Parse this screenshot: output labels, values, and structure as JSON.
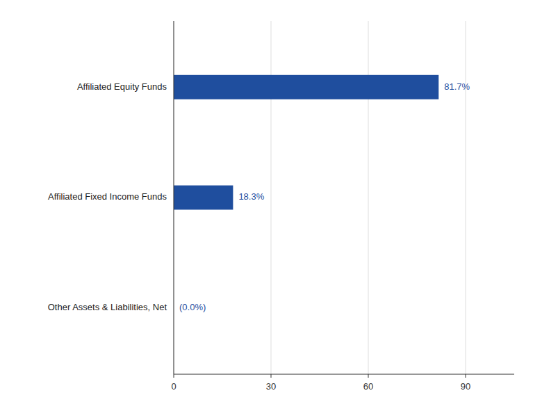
{
  "chart_data": {
    "type": "bar",
    "orientation": "horizontal",
    "categories": [
      "Other Assets & Liabilities, Net",
      "Affiliated Fixed Income Funds",
      "Affiliated Equity Funds"
    ],
    "values": [
      0.0,
      18.3,
      81.7
    ],
    "value_labels": [
      "(0.0%)",
      "18.3%",
      "81.7%"
    ],
    "data_labels": true,
    "color": "#1F4E9E",
    "xlim": [
      0,
      105
    ],
    "xticks": [
      0,
      30,
      60,
      90
    ],
    "grid": true
  }
}
